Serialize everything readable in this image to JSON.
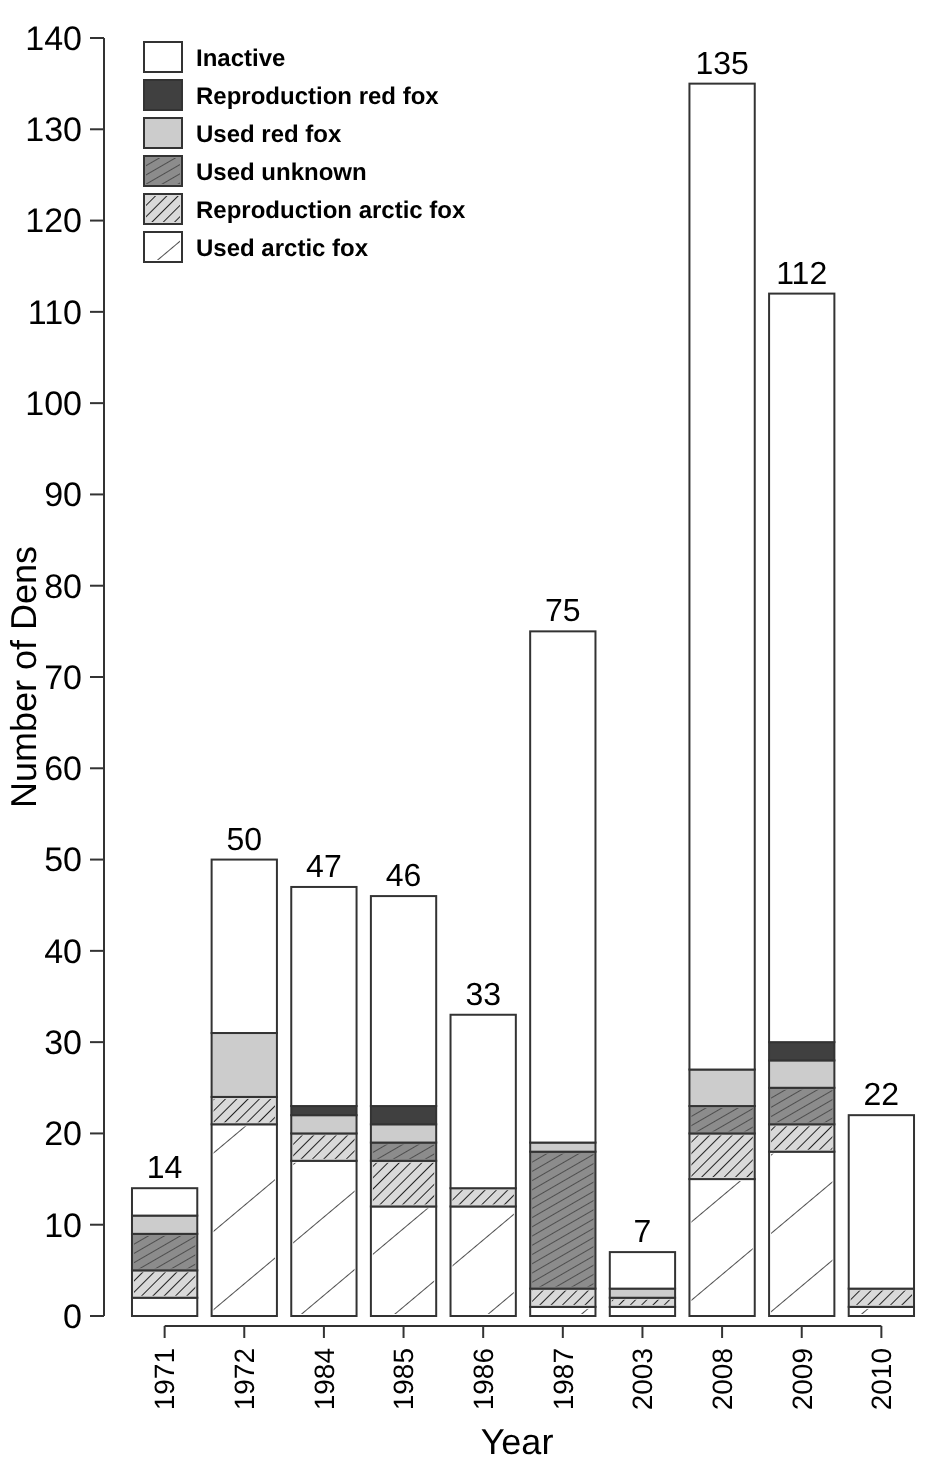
{
  "chart_data": {
    "type": "bar",
    "stacked": true,
    "xlabel": "Year",
    "ylabel": "Number of Dens",
    "categories": [
      "1971",
      "1972",
      "1984",
      "1985",
      "1986",
      "1987",
      "2003",
      "2008",
      "2009",
      "2010"
    ],
    "series": [
      {
        "name": "Used arctic fox",
        "color": "#ffffff",
        "values": [
          2,
          21,
          17,
          12,
          12,
          1,
          1,
          15,
          18,
          1
        ]
      },
      {
        "name": "Reproduction arctic fox",
        "color": "#d9d9d9",
        "values": [
          3,
          3,
          3,
          5,
          2,
          2,
          1,
          5,
          3,
          2
        ]
      },
      {
        "name": "Used unknown",
        "color": "#8c8c8c",
        "values": [
          4,
          0,
          0,
          2,
          0,
          15,
          0,
          3,
          4,
          0
        ]
      },
      {
        "name": "Used red fox",
        "color": "#cccccc",
        "values": [
          2,
          7,
          2,
          2,
          0,
          1,
          1,
          4,
          3,
          0
        ]
      },
      {
        "name": "Reproduction red fox",
        "color": "#404040",
        "values": [
          0,
          0,
          1,
          2,
          0,
          0,
          0,
          0,
          2,
          0
        ]
      },
      {
        "name": "Inactive",
        "color": "#ffffff",
        "values": [
          3,
          19,
          24,
          23,
          19,
          56,
          4,
          108,
          82,
          19
        ]
      }
    ],
    "totals": [
      "14",
      "50",
      "47",
      "46",
      "33",
      "75",
      "7",
      "135",
      "112",
      "22"
    ],
    "ylim": [
      0,
      140
    ],
    "yticks": [
      0,
      10,
      20,
      30,
      40,
      50,
      60,
      70,
      80,
      90,
      100,
      110,
      120,
      130,
      140
    ],
    "legend": "top left"
  }
}
